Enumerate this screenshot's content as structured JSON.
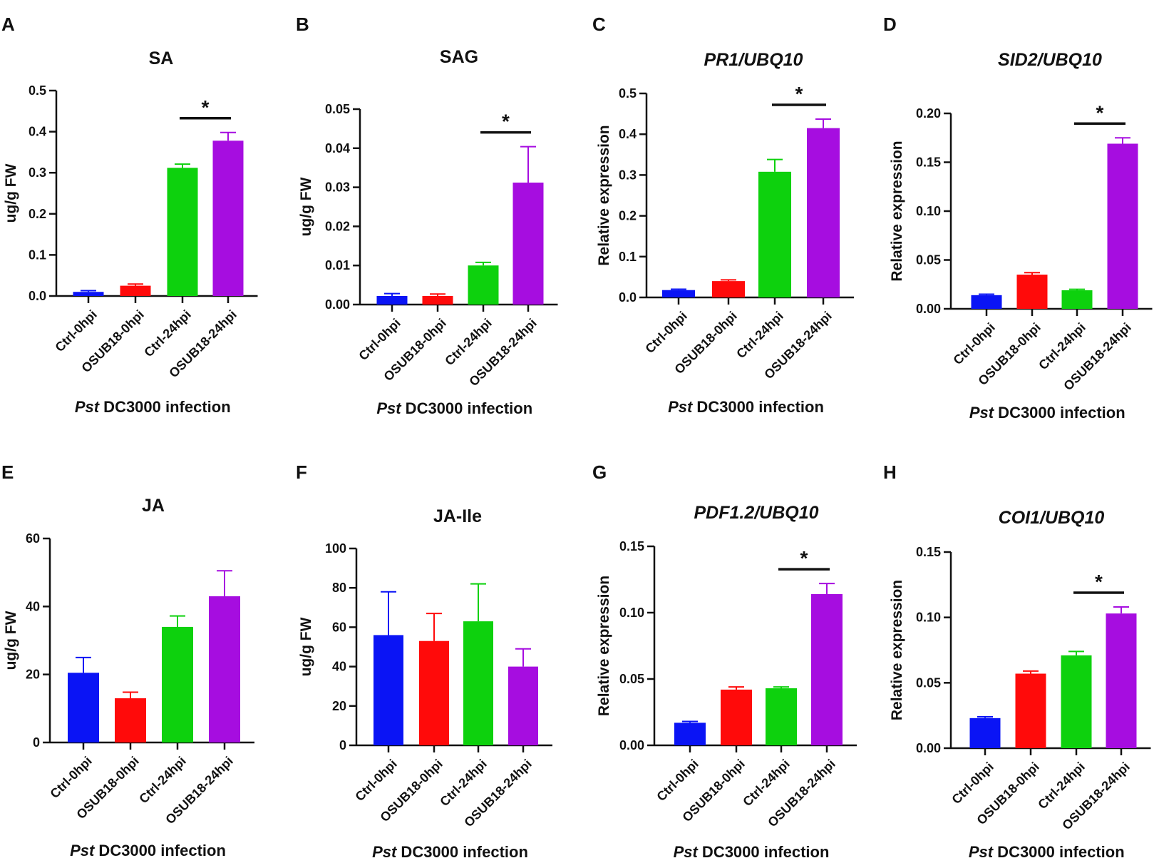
{
  "figure": {
    "xlabel_italic": "Pst",
    "xlabel_rest": " DC3000 infection"
  },
  "colors": [
    "#0a14f5",
    "#ff0a0a",
    "#0dd10d",
    "#a60de0"
  ],
  "chart_data": [
    {
      "panel": "A",
      "type": "bar",
      "title": "SA",
      "title_italic": false,
      "categories": [
        "Ctrl-0hpi",
        "OSUB18-0hpi",
        "Ctrl-24hpi",
        "OSUB18-24hpi"
      ],
      "values": [
        0.01,
        0.025,
        0.312,
        0.378
      ],
      "errors": [
        0.003,
        0.004,
        0.009,
        0.02
      ],
      "ylabel": "ug/g FW",
      "ylim": [
        0,
        0.5
      ],
      "yticks": [
        0,
        0.1,
        0.2,
        0.3,
        0.4,
        0.5
      ],
      "yticklabels": [
        "0.0",
        "0.1",
        "0.2",
        "0.3",
        "0.4",
        "0.5"
      ],
      "significance": {
        "from": 2,
        "to": 3,
        "label": "*"
      }
    },
    {
      "panel": "B",
      "type": "bar",
      "title": "SAG",
      "title_italic": false,
      "categories": [
        "Ctrl-0hpi",
        "OSUB18-0hpi",
        "Ctrl-24hpi",
        "OSUB18-24hpi"
      ],
      "values": [
        0.0022,
        0.0022,
        0.01,
        0.0312
      ],
      "errors": [
        0.0006,
        0.0005,
        0.0008,
        0.0092
      ],
      "ylabel": "ug/g FW",
      "ylim": [
        0,
        0.05
      ],
      "yticks": [
        0,
        0.01,
        0.02,
        0.03,
        0.04,
        0.05
      ],
      "yticklabels": [
        "0.00",
        "0.01",
        "0.02",
        "0.03",
        "0.04",
        "0.05"
      ],
      "significance": {
        "from": 2,
        "to": 3,
        "label": "*"
      }
    },
    {
      "panel": "C",
      "type": "bar",
      "title": "PR1/UBQ10",
      "title_italic": true,
      "categories": [
        "Ctrl-0hpi",
        "OSUB18-0hpi",
        "Ctrl-24hpi",
        "OSUB18-24hpi"
      ],
      "values": [
        0.018,
        0.04,
        0.308,
        0.415
      ],
      "errors": [
        0.002,
        0.003,
        0.03,
        0.022
      ],
      "ylabel": "Relative expression",
      "ylim": [
        0,
        0.5
      ],
      "yticks": [
        0,
        0.1,
        0.2,
        0.3,
        0.4,
        0.5
      ],
      "yticklabels": [
        "0.0",
        "0.1",
        "0.2",
        "0.3",
        "0.4",
        "0.5"
      ],
      "significance": {
        "from": 2,
        "to": 3,
        "label": "*"
      }
    },
    {
      "panel": "D",
      "type": "bar",
      "title": "SID2/UBQ10",
      "title_italic": true,
      "categories": [
        "Ctrl-0hpi",
        "OSUB18-0hpi",
        "Ctrl-24hpi",
        "OSUB18-24hpi"
      ],
      "values": [
        0.014,
        0.035,
        0.019,
        0.169
      ],
      "errors": [
        0.001,
        0.002,
        0.001,
        0.006
      ],
      "ylabel": "Relative expression",
      "ylim": [
        0,
        0.2
      ],
      "yticks": [
        0,
        0.05,
        0.1,
        0.15,
        0.2
      ],
      "yticklabels": [
        "0.00",
        "0.05",
        "0.10",
        "0.15",
        "0.20"
      ],
      "significance": {
        "from": 2,
        "to": 3,
        "label": "*"
      }
    },
    {
      "panel": "E",
      "type": "bar",
      "title": "JA",
      "title_italic": false,
      "categories": [
        "Ctrl-0hpi",
        "OSUB18-0hpi",
        "Ctrl-24hpi",
        "OSUB18-24hpi"
      ],
      "values": [
        20.5,
        13.0,
        34.0,
        43.0
      ],
      "errors": [
        4.5,
        1.8,
        3.2,
        7.5
      ],
      "ylabel": "ug/g FW",
      "ylim": [
        0,
        60
      ],
      "yticks": [
        0,
        20,
        40,
        60
      ],
      "yticklabels": [
        "0",
        "20",
        "40",
        "60"
      ],
      "significance": null
    },
    {
      "panel": "F",
      "type": "bar",
      "title": "JA-Ile",
      "title_italic": false,
      "categories": [
        "Ctrl-0hpi",
        "OSUB18-0hpi",
        "Ctrl-24hpi",
        "OSUB18-24hpi"
      ],
      "values": [
        56.0,
        53.0,
        63.0,
        40.0
      ],
      "errors": [
        22.0,
        14.0,
        19.0,
        9.0
      ],
      "ylabel": "ug/g FW",
      "ylim": [
        0,
        100
      ],
      "yticks": [
        0,
        20,
        40,
        60,
        80,
        100
      ],
      "yticklabels": [
        "0",
        "20",
        "40",
        "60",
        "80",
        "100"
      ],
      "significance": null
    },
    {
      "panel": "G",
      "type": "bar",
      "title": "PDF1.2/UBQ10",
      "title_italic": true,
      "categories": [
        "Ctrl-0hpi",
        "OSUB18-0hpi",
        "Ctrl-24hpi",
        "OSUB18-24hpi"
      ],
      "values": [
        0.017,
        0.042,
        0.043,
        0.114
      ],
      "errors": [
        0.001,
        0.002,
        0.001,
        0.008
      ],
      "ylabel": "Relative expression",
      "ylim": [
        0,
        0.15
      ],
      "yticks": [
        0,
        0.05,
        0.1,
        0.15
      ],
      "yticklabels": [
        "0.00",
        "0.05",
        "0.10",
        "0.15"
      ],
      "significance": {
        "from": 2,
        "to": 3,
        "label": "*"
      }
    },
    {
      "panel": "H",
      "type": "bar",
      "title": "COI1/UBQ10",
      "title_italic": true,
      "categories": [
        "Ctrl-0hpi",
        "OSUB18-0hpi",
        "Ctrl-24hpi",
        "OSUB18-24hpi"
      ],
      "values": [
        0.023,
        0.057,
        0.071,
        0.103
      ],
      "errors": [
        0.001,
        0.002,
        0.003,
        0.005
      ],
      "ylabel": "Relative expression",
      "ylim": [
        0,
        0.15
      ],
      "yticks": [
        0,
        0.05,
        0.1,
        0.15
      ],
      "yticklabels": [
        "0.00",
        "0.05",
        "0.10",
        "0.15"
      ],
      "significance": {
        "from": 2,
        "to": 3,
        "label": "*"
      }
    }
  ]
}
